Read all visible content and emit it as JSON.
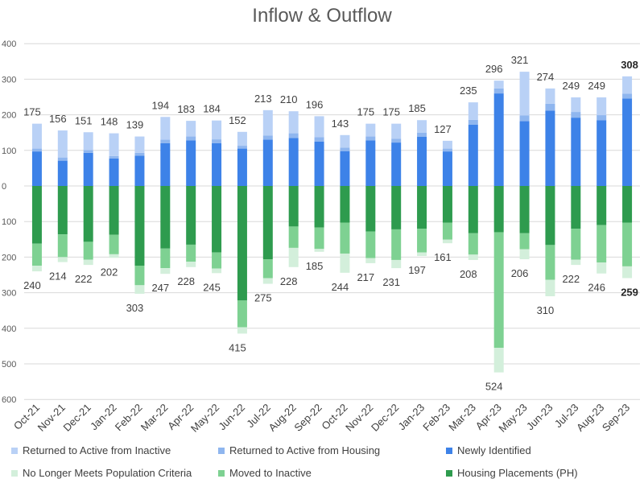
{
  "chart_data": {
    "type": "bar",
    "title": "Inflow & Outflow",
    "stacked": true,
    "categories": [
      "Oct-21",
      "Nov-21",
      "Dec-21",
      "Jan-22",
      "Feb-22",
      "Mar-22",
      "Apr-22",
      "May-22",
      "Jun-22",
      "Jul-22",
      "Aug-22",
      "Sep-22",
      "Oct-22",
      "Nov-22",
      "Dec-22",
      "Jan-23",
      "Feb-23",
      "Mar-23",
      "Apr-23",
      "May-23",
      "Jun-23",
      "Jul-23",
      "Aug-23",
      "Sep-23"
    ],
    "ylim": [
      -600,
      400
    ],
    "yticks": [
      400,
      300,
      200,
      100,
      0,
      -100,
      -200,
      -300,
      -400,
      -500,
      -600
    ],
    "ytick_labels": [
      "400",
      "300",
      "200",
      "100",
      "0",
      "100",
      "200",
      "300",
      "400",
      "500",
      "600"
    ],
    "grid": true,
    "legend_position": "bottom",
    "inflow_series": [
      {
        "name": "Newly Identified",
        "color": "#3d82e8",
        "values": [
          97,
          71,
          93,
          77,
          85,
          120,
          128,
          120,
          105,
          130,
          135,
          125,
          98,
          128,
          122,
          138,
          97,
          172,
          260,
          182,
          212,
          192,
          185,
          246
        ]
      },
      {
        "name": "Returned to Active from Housing",
        "color": "#8fb6ef",
        "values": [
          8,
          9,
          8,
          7,
          8,
          10,
          11,
          11,
          8,
          12,
          13,
          12,
          10,
          11,
          11,
          12,
          8,
          14,
          14,
          16,
          19,
          16,
          14,
          13
        ]
      },
      {
        "name": "Returned to Active from Inactive",
        "color": "#b9d1f6",
        "values": [
          70,
          76,
          50,
          64,
          46,
          64,
          44,
          53,
          39,
          71,
          62,
          59,
          35,
          36,
          42,
          35,
          22,
          49,
          22,
          123,
          43,
          41,
          50,
          49
        ]
      }
    ],
    "outflow_series": [
      {
        "name": "Housing Placements (PH)",
        "color": "#2e9b4e",
        "values": [
          162,
          136,
          157,
          137,
          224,
          176,
          165,
          187,
          322,
          206,
          114,
          117,
          103,
          128,
          122,
          120,
          103,
          133,
          130,
          133,
          166,
          120,
          110,
          103
        ]
      },
      {
        "name": "Moved to Inactive",
        "color": "#7ed192",
        "values": [
          62,
          64,
          50,
          55,
          55,
          55,
          48,
          45,
          75,
          53,
          60,
          60,
          87,
          75,
          86,
          67,
          48,
          60,
          325,
          45,
          98,
          87,
          105,
          123
        ]
      },
      {
        "name": "No Longer Meets Population Criteria",
        "color": "#d3efdb",
        "values": [
          16,
          14,
          15,
          10,
          24,
          16,
          15,
          13,
          18,
          16,
          54,
          8,
          54,
          14,
          23,
          10,
          10,
          15,
          69,
          28,
          46,
          15,
          31,
          33
        ]
      }
    ],
    "inflow_totals": [
      "175",
      "156",
      "151",
      "148",
      "139",
      "194",
      "183",
      "184",
      "152",
      "213",
      "210",
      "196",
      "143",
      "175",
      "175",
      "185",
      "127",
      "235",
      "296",
      "321",
      "274",
      "249",
      "249",
      "308"
    ],
    "outflow_totals": [
      "240",
      "214",
      "222",
      "202",
      "303",
      "247",
      "228",
      "245",
      "415",
      "275",
      "228",
      "185",
      "244",
      "217",
      "231",
      "197",
      "161",
      "208",
      "524",
      "206",
      "310",
      "222",
      "246",
      "259"
    ],
    "bold_labels_last": true
  },
  "legend": [
    {
      "label": "Returned to Active from Inactive",
      "color": "#b9d1f6"
    },
    {
      "label": "Returned to Active from Housing",
      "color": "#8fb6ef"
    },
    {
      "label": "Newly Identified",
      "color": "#3d82e8"
    },
    {
      "label": "No Longer Meets Population Criteria",
      "color": "#d3efdb"
    },
    {
      "label": "Moved to Inactive",
      "color": "#7ed192"
    },
    {
      "label": "Housing Placements (PH)",
      "color": "#2e9b4e"
    }
  ]
}
